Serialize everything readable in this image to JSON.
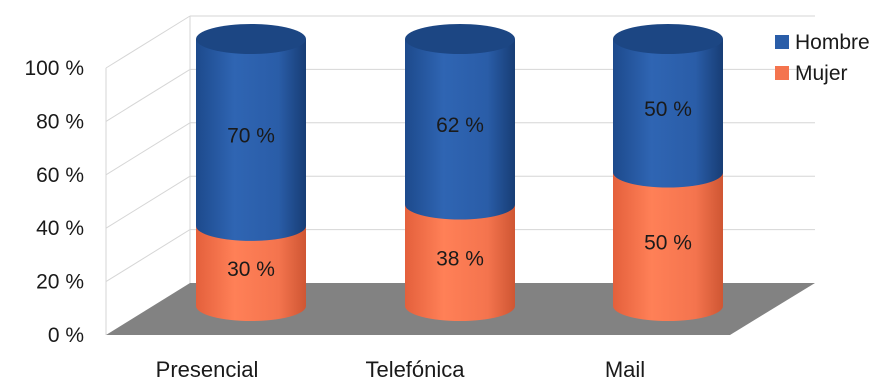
{
  "chart_data": {
    "type": "bar",
    "subtype": "stacked-percent-3d-cylinder",
    "categories": [
      "Presencial",
      "Telefónica",
      "Mail"
    ],
    "series": [
      {
        "name": "Mujer",
        "values": [
          30,
          38,
          50
        ],
        "labels": [
          "30 %",
          "38 %",
          "50 %"
        ],
        "color": "#f4744e"
      },
      {
        "name": "Hombre",
        "values": [
          70,
          62,
          50
        ],
        "labels": [
          "70 %",
          "62 %",
          "50 %"
        ],
        "color": "#2a5da8"
      }
    ],
    "ylim": [
      0,
      100
    ],
    "yticks": [
      "0 %",
      "20 %",
      "40 %",
      "60 %",
      "80 %",
      "100 %"
    ],
    "grid": true,
    "floor_color": "#808080",
    "legend_position": "right",
    "legend": [
      {
        "name": "Hombre",
        "color": "#2a5da8"
      },
      {
        "name": "Mujer",
        "color": "#f4744e"
      }
    ]
  }
}
